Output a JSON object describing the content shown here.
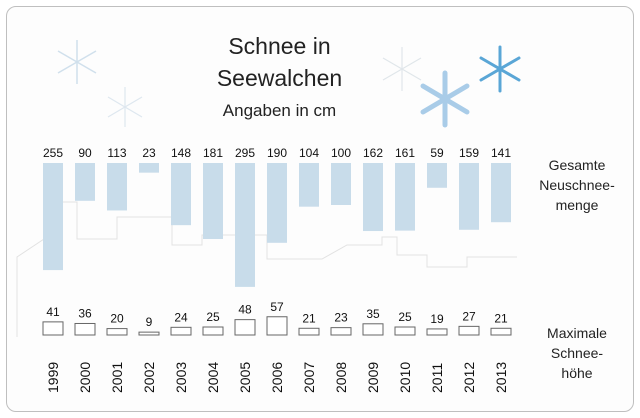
{
  "title_line1": "Schnee in",
  "title_line2": "Seewalchen",
  "unit_label": "Angaben in cm",
  "series_top_label": [
    "Gesamte",
    "Neuschnee-",
    "menge"
  ],
  "series_bottom_label": [
    "Maximale",
    "Schnee-",
    "höhe"
  ],
  "colors": {
    "top_bars": "#c8dcea",
    "bottom_boxes": "#ffffff",
    "bottom_outline": "#666666",
    "snowflake": "#5aa6d6"
  },
  "chart_data": {
    "type": "bar",
    "categories": [
      "1999",
      "2000",
      "2001",
      "2002",
      "2003",
      "2004",
      "2005",
      "2006",
      "2007",
      "2008",
      "2009",
      "2010",
      "2011",
      "2012",
      "2013"
    ],
    "series": [
      {
        "name": "Gesamte Neuschneemenge",
        "values": [
          255,
          90,
          113,
          23,
          148,
          181,
          295,
          190,
          104,
          100,
          162,
          161,
          59,
          159,
          141
        ]
      },
      {
        "name": "Maximale Schneehöhe",
        "values": [
          41,
          36,
          20,
          9,
          24,
          25,
          48,
          57,
          21,
          23,
          35,
          25,
          19,
          27,
          21
        ]
      }
    ],
    "title": "Schnee in Seewalchen",
    "subtitle": "Angaben in cm"
  }
}
